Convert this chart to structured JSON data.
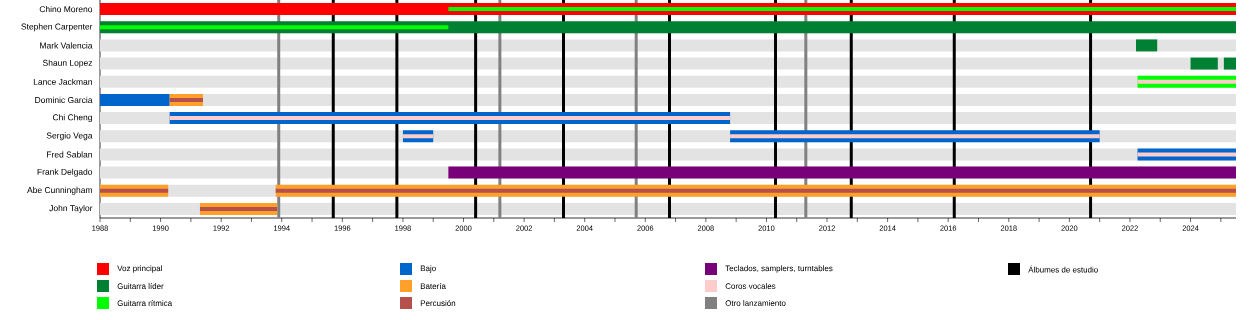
{
  "chart_data": {
    "type": "bar",
    "orientation": "horizontal",
    "legend": "bottom",
    "categories": [
      "Chino Moreno",
      "Stephen Carpenter",
      "Mark Valencia",
      "Shaun Lopez",
      "Lance Jackman",
      "Dominic Garcia",
      "Chi Cheng",
      "Sergio Vega",
      "Fred Sablan",
      "Frank Delgado",
      "Abe Cunningham",
      "John Taylor"
    ],
    "xlim": [
      1988,
      2025.5
    ],
    "xticks": [
      1988,
      {
        "value": 1989,
        "label": null
      },
      1990,
      {
        "value": 1991,
        "label": null
      },
      1992,
      {
        "value": 1993,
        "label": null
      },
      1994,
      {
        "value": 1995,
        "label": null
      },
      1996,
      {
        "value": 1997,
        "label": null
      },
      1998,
      {
        "value": 1999,
        "label": null
      },
      2000,
      {
        "value": 2001,
        "label": null
      },
      2002,
      {
        "value": 2003,
        "label": null
      },
      2004,
      {
        "value": 2005,
        "label": null
      },
      2006,
      {
        "value": 2007,
        "label": null
      },
      2008,
      {
        "value": 2009,
        "label": null
      },
      2010,
      {
        "value": 2011,
        "label": null
      },
      2012,
      {
        "value": 2013,
        "label": null
      },
      2014,
      {
        "value": 2015,
        "label": null
      },
      2016,
      {
        "value": 2017,
        "label": null
      },
      2018,
      {
        "value": 2019,
        "label": null
      },
      2020,
      {
        "value": 2021,
        "label": null
      },
      2022,
      {
        "value": 2023,
        "label": null
      },
      2024,
      {
        "value": 2025,
        "label": null
      }
    ],
    "series": [
      {
        "name": "Voz principal",
        "color": "#ff0000",
        "base": [
          1988,
          null,
          null,
          null,
          null,
          null,
          null,
          null,
          null,
          null,
          null,
          null
        ],
        "values": [
          37.5,
          null,
          null,
          null,
          null,
          null,
          null,
          null,
          null,
          null,
          null,
          null
        ]
      },
      {
        "name": "Guitarra líder",
        "color": "#008033",
        "base": [
          null,
          1988,
          2022.2,
          2024.0,
          null,
          null,
          null,
          null,
          null,
          null,
          null,
          null
        ],
        "values": [
          null,
          37.5,
          0.7,
          0.9,
          null,
          null,
          null,
          null,
          null,
          null,
          null,
          null
        ]
      },
      {
        "name": "Guitarra rítmica",
        "color": "#00ff00",
        "base": [
          1999.5,
          1988,
          null,
          null,
          2022.25,
          null,
          null,
          null,
          null,
          null,
          null,
          null
        ],
        "values": [
          26.0,
          11.5,
          null,
          null,
          3.25,
          null,
          null,
          null,
          null,
          null,
          null,
          null
        ]
      },
      {
        "name": "Bajo",
        "color": "#0066cc",
        "base": [
          null,
          null,
          null,
          null,
          null,
          1988,
          1990.3,
          1998.0,
          2022.25,
          null,
          null,
          null
        ],
        "values": [
          null,
          null,
          null,
          null,
          null,
          2.3,
          18.5,
          1.0,
          3.25,
          null,
          null,
          null
        ]
      },
      {
        "name": "Batería",
        "color": "#ffa02a",
        "base": [
          null,
          null,
          null,
          null,
          null,
          1990.3,
          null,
          null,
          null,
          null,
          1988,
          1991.3
        ],
        "values": [
          null,
          null,
          null,
          null,
          null,
          1.1,
          null,
          null,
          null,
          null,
          2.25,
          2.55
        ]
      },
      {
        "name": "Percusión",
        "color": "#b5504d",
        "base": [
          null,
          null,
          null,
          null,
          null,
          1990.3,
          null,
          null,
          null,
          null,
          1988,
          1991.3
        ],
        "values": [
          null,
          null,
          null,
          null,
          null,
          1.1,
          null,
          null,
          null,
          null,
          2.25,
          2.55
        ]
      },
      {
        "name": "Teclados, samplers, turntables",
        "color": "#780078",
        "base": [
          null,
          null,
          null,
          null,
          null,
          null,
          null,
          null,
          null,
          1999.5,
          null,
          null
        ],
        "values": [
          null,
          null,
          null,
          null,
          null,
          null,
          null,
          null,
          null,
          26.0,
          null,
          null
        ]
      },
      {
        "name": "Coros vocales",
        "color": "#ffcccc",
        "base": [
          null,
          null,
          null,
          null,
          2022.25,
          null,
          1990.3,
          1998.0,
          2022.25,
          null,
          null,
          null
        ],
        "values": [
          null,
          null,
          null,
          null,
          3.25,
          null,
          18.5,
          1.0,
          3.25,
          null,
          null,
          null
        ]
      },
      {
        "color": "#0066cc",
        "base": [
          null,
          null,
          null,
          null,
          null,
          null,
          null,
          2008.8,
          null,
          null,
          null,
          null
        ],
        "values": [
          null,
          null,
          null,
          null,
          null,
          null,
          null,
          12.2,
          null,
          null,
          null,
          null
        ]
      },
      {
        "color": "#ffcccc",
        "base": [
          null,
          null,
          null,
          null,
          null,
          null,
          null,
          2008.8,
          null,
          null,
          null,
          null
        ],
        "values": [
          null,
          null,
          null,
          null,
          null,
          null,
          null,
          12.2,
          null,
          null,
          null,
          null
        ]
      },
      {
        "color": "#ffa02a",
        "base": [
          null,
          null,
          null,
          null,
          null,
          null,
          null,
          null,
          null,
          null,
          1993.8,
          null
        ],
        "values": [
          null,
          null,
          null,
          null,
          null,
          null,
          null,
          null,
          null,
          null,
          31.7,
          null
        ]
      },
      {
        "color": "#b5504d",
        "base": [
          null,
          null,
          null,
          null,
          null,
          null,
          null,
          null,
          null,
          null,
          1993.8,
          null
        ],
        "values": [
          null,
          null,
          null,
          null,
          null,
          null,
          null,
          null,
          null,
          null,
          31.7,
          null
        ]
      },
      {
        "color": "#008033",
        "base": [
          null,
          null,
          null,
          2025.1,
          null,
          null,
          null,
          null,
          null,
          null,
          null,
          null
        ],
        "values": [
          null,
          null,
          null,
          0.4,
          null,
          null,
          null,
          null,
          null,
          null,
          null,
          null
        ]
      }
    ],
    "ref_lines": [
      {
        "axis": "x",
        "value": 1993.9,
        "color": "#808080",
        "label": "Otro lanzamiento"
      },
      {
        "axis": "x",
        "value": 1995.7,
        "color": "#000000",
        "label": "Álbumes de estudio"
      },
      {
        "axis": "x",
        "value": 1997.8,
        "color": "#000000"
      },
      {
        "axis": "x",
        "value": 2000.4,
        "color": "#000000"
      },
      {
        "axis": "x",
        "value": 2001.2,
        "color": "#808080"
      },
      {
        "axis": "x",
        "value": 2003.3,
        "color": "#000000"
      },
      {
        "axis": "x",
        "value": 2005.7,
        "color": "#808080"
      },
      {
        "axis": "x",
        "value": 2006.8,
        "color": "#000000"
      },
      {
        "axis": "x",
        "value": 2010.3,
        "color": "#000000"
      },
      {
        "axis": "x",
        "value": 2011.3,
        "color": "#808080"
      },
      {
        "axis": "x",
        "value": 2012.8,
        "color": "#000000"
      },
      {
        "axis": "x",
        "value": 2016.2,
        "color": "#000000"
      },
      {
        "axis": "x",
        "value": 2020.7,
        "color": "#000000"
      }
    ]
  }
}
